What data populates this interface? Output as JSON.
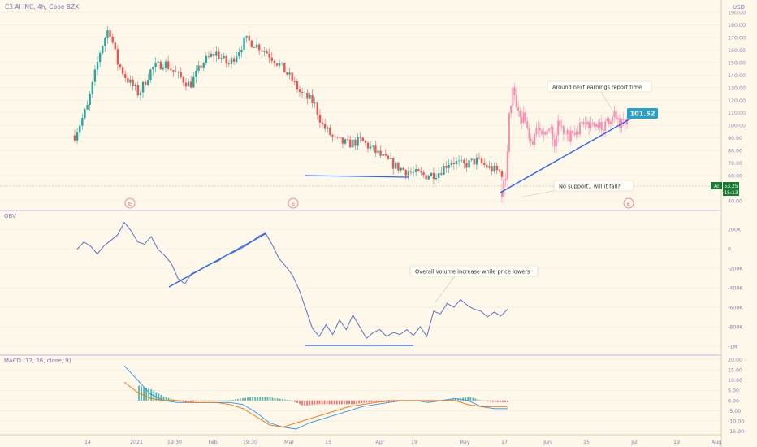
{
  "header": {
    "symbol_title": "C3.AI INC, 4h, Cboe BZX",
    "currency": "USD"
  },
  "price_pane": {
    "y_ticks": [
      "190.00",
      "180.00",
      "170.00",
      "160.00",
      "150.00",
      "140.00",
      "130.00",
      "120.00",
      "110.00",
      "100.00",
      "90.00",
      "80.00",
      "70.00",
      "60.00",
      "40.00"
    ],
    "last_price_symbol": "AI",
    "last_price": "53.25",
    "countdown": "15:13",
    "target_label": "101.52",
    "earnings_marker": "E",
    "annotations": {
      "earnings_note": "Around next earnings report time",
      "support_note": "No support.. will it fall?"
    }
  },
  "obv_pane": {
    "title": "OBV",
    "y_ticks": [
      "200K",
      "0",
      "-200K",
      "-400K",
      "-600K",
      "-800K",
      "-1M"
    ],
    "annotation": "Overall volume increase while price lowers"
  },
  "macd_pane": {
    "title": "MACD (12, 26, close, 9)",
    "y_ticks": [
      "20.00",
      "15.00",
      "10.00",
      "5.00",
      "0.00",
      "-5.00",
      "-10.00",
      "-15.00"
    ]
  },
  "x_axis": {
    "labels": [
      "14",
      "2021",
      "19:30",
      "Feb",
      "19:30",
      "Mar",
      "15",
      "Apr",
      "19",
      "May",
      "17",
      "Jun",
      "15",
      "Jul",
      "19",
      "Aug"
    ]
  },
  "colors": {
    "background": "#fdf8ea",
    "up": "#26a69a",
    "down": "#ef5350",
    "forecast": "#f48fb1",
    "trendline": "#2962ff",
    "macd_line": "#2196f3",
    "signal_line": "#ff6d00",
    "obv_line": "#5b6fc7",
    "target_box": "#26a0c8",
    "last_price_box": "#1b7a33",
    "pane_divider": "#c9b6e4",
    "grid": "#ece6d6"
  },
  "chart_data": [
    {
      "type": "candlestick",
      "title": "C3.AI INC, 4h, Cboe BZX",
      "ylim": [
        40,
        195
      ],
      "x": [
        "14",
        "2021",
        "19:30",
        "Feb",
        "19:30",
        "Mar",
        "15",
        "Apr",
        "19",
        "May",
        "17",
        "Jun",
        "15",
        "Jul",
        "19",
        "Aug"
      ],
      "close_path": [
        [
          0.0,
          92
        ],
        [
          0.03,
          115
        ],
        [
          0.06,
          160
        ],
        [
          0.08,
          178
        ],
        [
          0.1,
          150
        ],
        [
          0.12,
          138
        ],
        [
          0.15,
          125
        ],
        [
          0.18,
          145
        ],
        [
          0.21,
          150
        ],
        [
          0.24,
          140
        ],
        [
          0.27,
          132
        ],
        [
          0.3,
          150
        ],
        [
          0.33,
          158
        ],
        [
          0.36,
          148
        ],
        [
          0.4,
          168
        ],
        [
          0.42,
          165
        ],
        [
          0.45,
          158
        ],
        [
          0.48,
          148
        ],
        [
          0.5,
          140
        ],
        [
          0.53,
          125
        ],
        [
          0.56,
          118
        ],
        [
          0.58,
          100
        ],
        [
          0.61,
          88
        ],
        [
          0.64,
          85
        ],
        [
          0.67,
          88
        ],
        [
          0.7,
          80
        ],
        [
          0.73,
          72
        ],
        [
          0.76,
          66
        ],
        [
          0.79,
          62
        ],
        [
          0.82,
          60
        ],
        [
          0.85,
          62
        ],
        [
          0.88,
          72
        ],
        [
          0.91,
          68
        ],
        [
          0.94,
          72
        ],
        [
          0.97,
          66
        ],
        [
          1.0,
          62
        ]
      ],
      "forecast_path": [
        [
          0.0,
          48
        ],
        [
          0.03,
          60
        ],
        [
          0.06,
          112
        ],
        [
          0.09,
          128
        ],
        [
          0.12,
          118
        ],
        [
          0.15,
          100
        ],
        [
          0.18,
          112
        ],
        [
          0.21,
          90
        ],
        [
          0.24,
          82
        ],
        [
          0.27,
          95
        ],
        [
          0.3,
          102
        ],
        [
          0.33,
          92
        ],
        [
          0.36,
          98
        ],
        [
          0.39,
          100
        ],
        [
          0.42,
          88
        ],
        [
          0.45,
          102
        ],
        [
          0.48,
          96
        ],
        [
          0.51,
          98
        ],
        [
          0.54,
          90
        ],
        [
          0.57,
          96
        ],
        [
          0.6,
          92
        ],
        [
          0.63,
          100
        ],
        [
          0.66,
          104
        ],
        [
          0.69,
          96
        ],
        [
          0.72,
          106
        ],
        [
          0.75,
          100
        ],
        [
          0.78,
          104
        ],
        [
          0.81,
          98
        ],
        [
          0.84,
          106
        ],
        [
          0.87,
          100
        ],
        [
          0.9,
          108
        ],
        [
          0.93,
          104
        ],
        [
          0.96,
          100
        ],
        [
          1.0,
          102
        ]
      ],
      "last_price": 53.25,
      "target_price": 101.52,
      "earnings_events": 3
    },
    {
      "type": "line",
      "title": "OBV",
      "ylim": [
        -1050000,
        300000
      ],
      "values": [
        -5000,
        70000,
        25000,
        -55000,
        30000,
        85000,
        140000,
        270000,
        185000,
        70000,
        45000,
        125000,
        -5000,
        -70000,
        -150000,
        -305000,
        -360000,
        -255000,
        -225000,
        -185000,
        -150000,
        -125000,
        -75000,
        -45000,
        -10000,
        25000,
        75000,
        130000,
        160000,
        40000,
        -100000,
        -180000,
        -270000,
        -420000,
        -620000,
        -820000,
        -900000,
        -780000,
        -880000,
        -730000,
        -830000,
        -680000,
        -800000,
        -920000,
        -860000,
        -830000,
        -900000,
        -860000,
        -880000,
        -830000,
        -890000,
        -800000,
        -900000,
        -640000,
        -670000,
        -560000,
        -600000,
        -520000,
        -580000,
        -620000,
        -640000,
        -700000,
        -650000,
        -690000,
        -620000
      ]
    },
    {
      "type": "line",
      "title": "MACD (12, 26, close, 9)",
      "ylim": [
        -16,
        21
      ],
      "series": [
        {
          "values": [
            17,
            10,
            3,
            0,
            -1,
            -1,
            -1,
            -1,
            -1,
            -2,
            -6,
            -11,
            -13,
            -14,
            -11,
            -9,
            -7,
            -5,
            -3,
            -2,
            -1,
            0,
            0,
            -1,
            0,
            1,
            0,
            -3,
            -4,
            -4
          ]
        },
        {
          "values": [
            9,
            4,
            1,
            0,
            0,
            -1,
            -1,
            -1,
            -2,
            -4,
            -8,
            -12,
            -13,
            -11,
            -9,
            -7,
            -5,
            -3,
            -2,
            -1,
            0,
            0,
            0,
            0,
            0,
            0,
            -2,
            -3,
            -3,
            -3
          ]
        }
      ]
    }
  ]
}
